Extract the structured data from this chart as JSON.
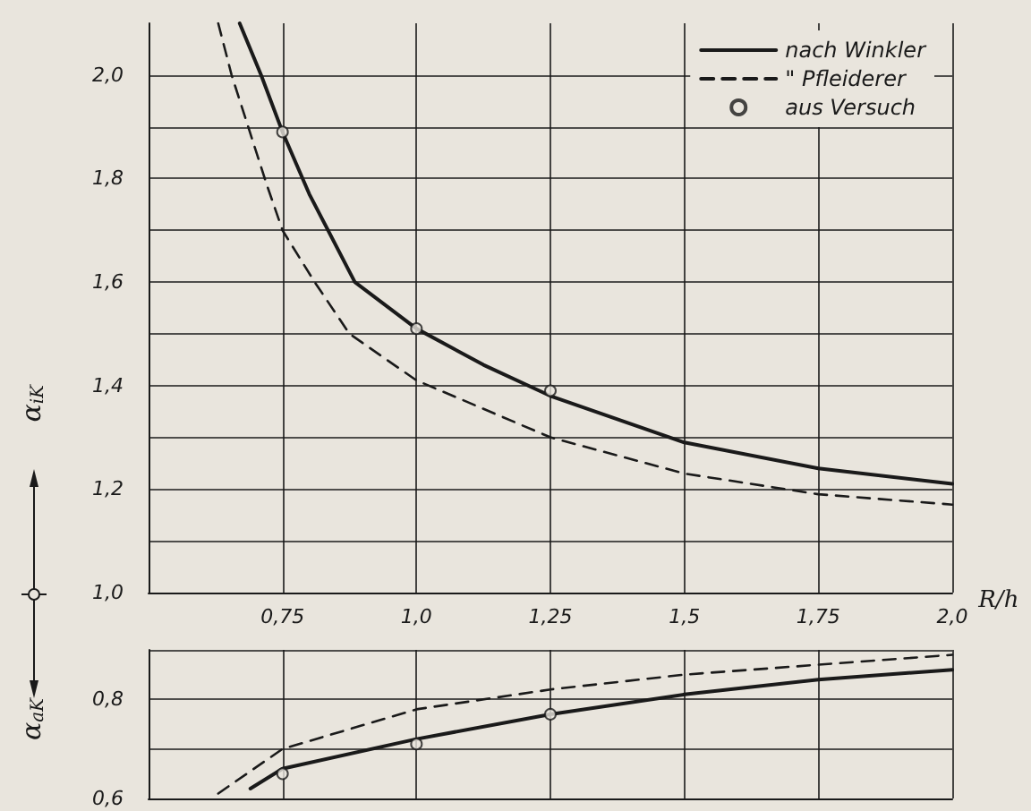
{
  "chart_data": [
    {
      "type": "line",
      "xlabel": "R/h",
      "ylabel": "α$_{iK}$",
      "xlim": [
        0.5,
        2.0
      ],
      "xticks": [
        {
          "value": 0.75,
          "label": "0,75"
        },
        {
          "value": 1.0,
          "label": "1,0"
        },
        {
          "value": 1.25,
          "label": "1,25"
        },
        {
          "value": 1.5,
          "label": "1,5"
        },
        {
          "value": 1.75,
          "label": "1,75"
        },
        {
          "value": 2.0,
          "label": "2,0"
        }
      ],
      "ylim": [
        1.0,
        2.1
      ],
      "yticks": [
        {
          "value": 1.0,
          "label": "1,0"
        },
        {
          "value": 1.1,
          "label": null
        },
        {
          "value": 1.2,
          "label": "1,2"
        },
        {
          "value": 1.3,
          "label": null
        },
        {
          "value": 1.4,
          "label": "1,4"
        },
        {
          "value": 1.5,
          "label": null
        },
        {
          "value": 1.6,
          "label": "1,6"
        },
        {
          "value": 1.7,
          "label": null
        },
        {
          "value": 1.8,
          "label": "1,8"
        },
        {
          "value": 1.9,
          "label": null
        },
        {
          "value": 2.0,
          "label": "2,0"
        }
      ],
      "grid": true,
      "legend": "top right",
      "series": [
        {
          "name": "nach Winkler",
          "color": "#1a1a1a",
          "line_style": "solid",
          "marker": "none",
          "x": [
            0.67,
            0.71,
            0.75,
            0.8,
            0.885,
            1.0,
            1.125,
            1.25,
            1.5,
            1.75,
            2.0
          ],
          "values": [
            2.1,
            2.0,
            1.89,
            1.77,
            1.6,
            1.51,
            1.44,
            1.38,
            1.29,
            1.24,
            1.21
          ]
        },
        {
          "name": "\" Pfleiderer",
          "color": "#1a1a1a",
          "line_style": "dashed",
          "marker": "none",
          "x": [
            0.63,
            0.655,
            0.72,
            0.75,
            0.81,
            0.875,
            1.0,
            1.25,
            1.5,
            1.75,
            2.0
          ],
          "values": [
            2.1,
            2.0,
            1.79,
            1.7,
            1.6,
            1.5,
            1.41,
            1.3,
            1.23,
            1.19,
            1.17
          ]
        },
        {
          "name": "aus Versuch",
          "type": "scatter",
          "color": "#1a1a1a",
          "marker": "circle",
          "x": [
            0.75,
            1.0,
            1.25
          ],
          "values": [
            1.89,
            1.51,
            1.39
          ]
        }
      ]
    },
    {
      "type": "line",
      "ylabel": "α$_{aK}$",
      "xlim": [
        0.5,
        2.0
      ],
      "xticks": [
        {
          "value": 0.75,
          "label": null
        },
        {
          "value": 1.0,
          "label": null
        },
        {
          "value": 1.25,
          "label": null
        },
        {
          "value": 1.5,
          "label": null
        },
        {
          "value": 1.75,
          "label": null
        },
        {
          "value": 2.0,
          "label": null
        }
      ],
      "ylim": [
        0.6,
        0.9
      ],
      "yticks": [
        {
          "value": 0.6,
          "label": "0,6"
        },
        {
          "value": 0.7,
          "label": null
        },
        {
          "value": 0.8,
          "label": "0,8"
        },
        {
          "value": 0.9,
          "label": null
        }
      ],
      "grid": true,
      "tick_labels": "y",
      "series": [
        {
          "color": "#1a1a1a",
          "line_style": "solid",
          "marker": "none",
          "x": [
            0.69,
            0.75,
            1.0,
            1.25,
            1.5,
            1.75,
            2.0
          ],
          "values": [
            0.62,
            0.66,
            0.72,
            0.77,
            0.81,
            0.84,
            0.86
          ]
        },
        {
          "color": "#1a1a1a",
          "line_style": "dashed",
          "marker": "none",
          "x": [
            0.63,
            0.75,
            1.0,
            1.25,
            1.5,
            1.75,
            2.0
          ],
          "values": [
            0.61,
            0.7,
            0.78,
            0.82,
            0.85,
            0.87,
            0.89
          ]
        },
        {
          "type": "scatter",
          "color": "#1a1a1a",
          "marker": "circle",
          "x": [
            0.75,
            1.0,
            1.25
          ],
          "values": [
            0.65,
            0.71,
            0.77
          ]
        }
      ]
    }
  ]
}
